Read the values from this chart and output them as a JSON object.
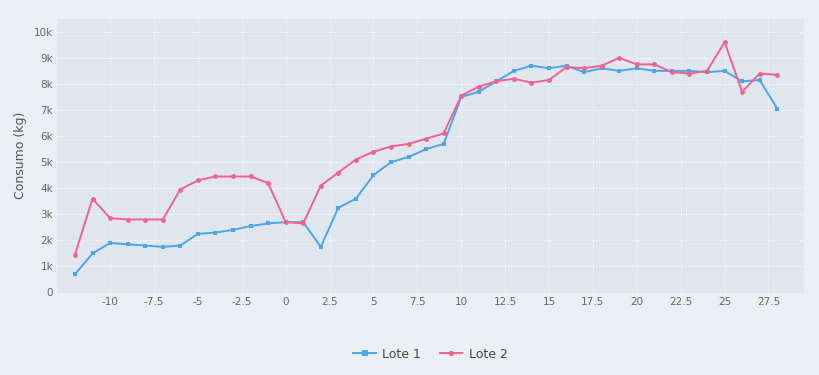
{
  "lote1_x": [
    -12,
    -11,
    -10,
    -9,
    -8,
    -7,
    -6,
    -5,
    -4,
    -3,
    -2,
    -1,
    0,
    1,
    2,
    3,
    4,
    5,
    6,
    7,
    8,
    9,
    10,
    11,
    12,
    13,
    14,
    15,
    16,
    17,
    18,
    19,
    20,
    21,
    22,
    23,
    24,
    25,
    26,
    27,
    28
  ],
  "lote1_y": [
    700,
    1500,
    1900,
    1850,
    1800,
    1750,
    1800,
    2250,
    2300,
    2400,
    2550,
    2650,
    2700,
    2700,
    1750,
    3250,
    3600,
    4500,
    5000,
    5200,
    5500,
    5700,
    7500,
    7700,
    8100,
    8500,
    8700,
    8600,
    8700,
    8450,
    8600,
    8500,
    8600,
    8500,
    8500,
    8500,
    8450,
    8500,
    8100,
    8150,
    7050
  ],
  "lote2_x": [
    -12,
    -11,
    -10,
    -9,
    -8,
    -7,
    -6,
    -5,
    -4,
    -3,
    -2,
    -1,
    0,
    1,
    2,
    3,
    4,
    5,
    6,
    7,
    8,
    9,
    10,
    11,
    12,
    13,
    14,
    15,
    16,
    17,
    18,
    19,
    20,
    21,
    22,
    23,
    24,
    25,
    26,
    27,
    28
  ],
  "lote2_y": [
    1450,
    3600,
    2850,
    2800,
    2800,
    2800,
    3950,
    4300,
    4450,
    4450,
    4450,
    4200,
    2700,
    2650,
    4100,
    4600,
    5100,
    5400,
    5600,
    5700,
    5900,
    6100,
    7550,
    7900,
    8100,
    8200,
    8050,
    8150,
    8650,
    8600,
    8700,
    9000,
    8750,
    8750,
    8450,
    8400,
    8500,
    9600,
    7700,
    8400,
    8350
  ],
  "color_lote1": "#4da6e8",
  "color_lote2": "#f06292",
  "ylabel": "Consumo (kg)",
  "yticks": [
    0,
    1000,
    2000,
    3000,
    4000,
    5000,
    6000,
    7000,
    8000,
    9000,
    10000
  ],
  "ytick_labels": [
    "0",
    "1k",
    "2k",
    "3k",
    "4k",
    "5k",
    "6k",
    "7k",
    "8k",
    "9k",
    "10k"
  ],
  "xticks": [
    -10,
    -7.5,
    -5,
    -2.5,
    0,
    2.5,
    5,
    7.5,
    10,
    12.5,
    15,
    17.5,
    20,
    22.5,
    25,
    27.5
  ],
  "xlim": [
    -13.0,
    29.5
  ],
  "ylim": [
    0,
    10500
  ],
  "background_color": "#eaeff4",
  "plot_bg_color": "#e0e6ed",
  "grid_color": "#ffffff",
  "legend1": "Lote 1",
  "legend2": "Lote 2"
}
